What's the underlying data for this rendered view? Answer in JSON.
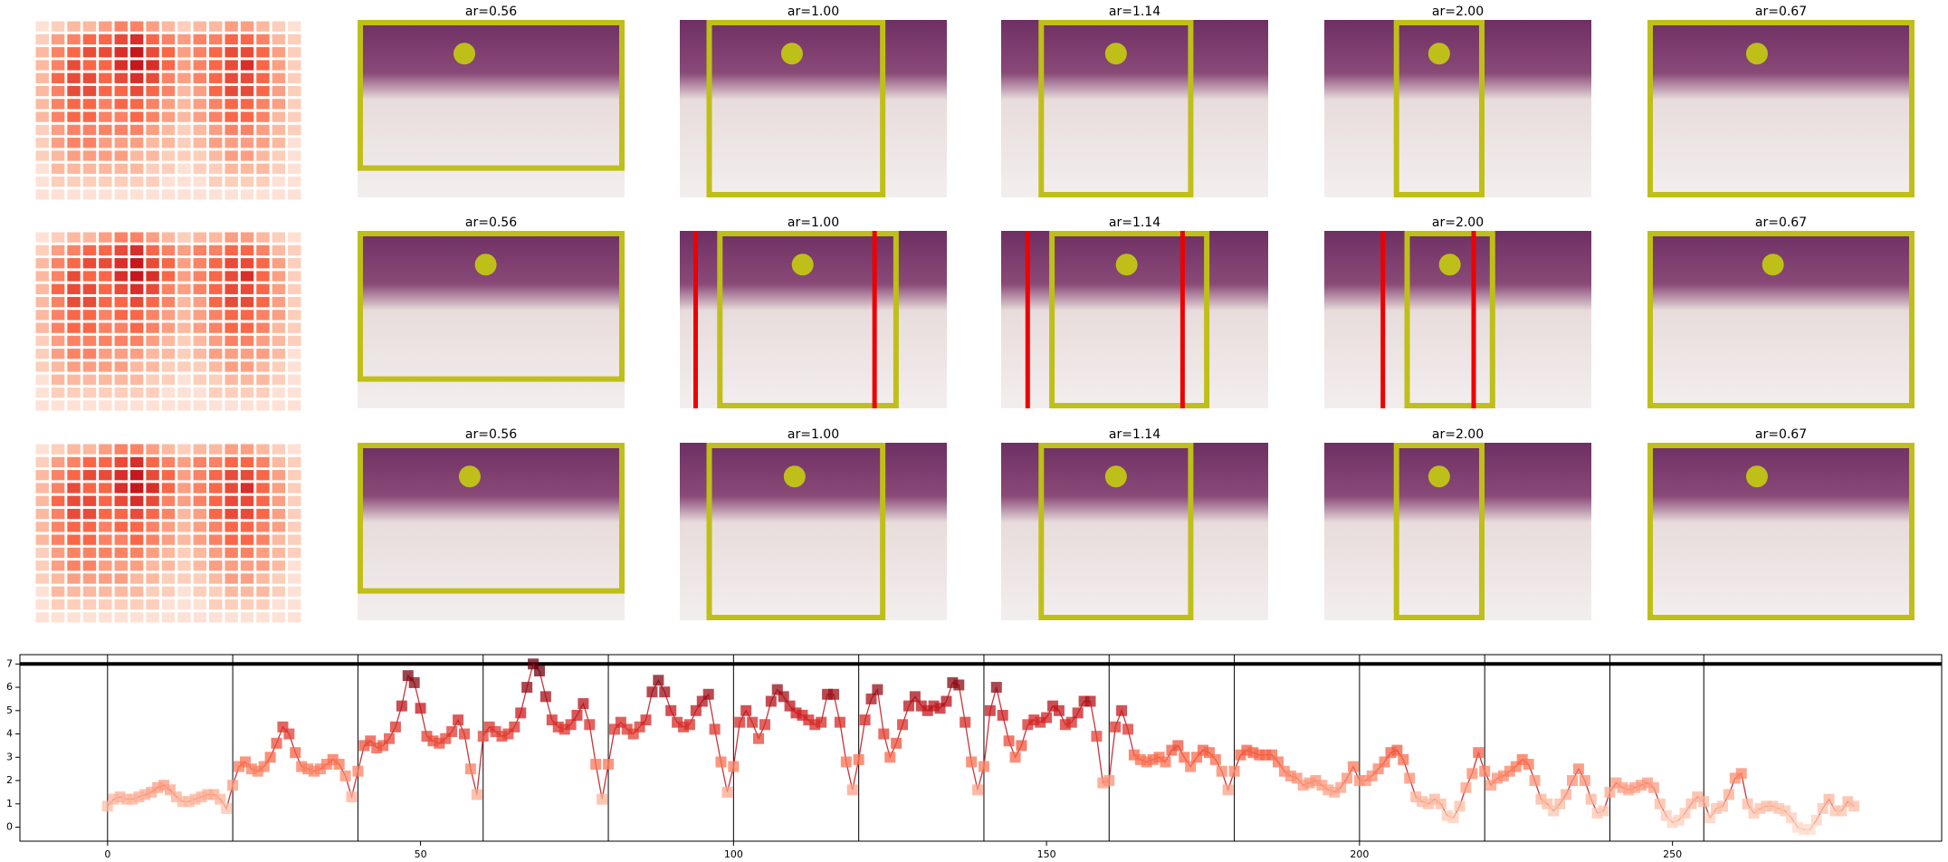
{
  "panel_titles": [
    "ar=0.56",
    "ar=1.00",
    "ar=1.14",
    "ar=2.00",
    "ar=0.67"
  ],
  "heatmap": [
    [
      0.1,
      0.2,
      0.3,
      0.3,
      0.4,
      0.5,
      0.5,
      0.4,
      0.3,
      0.2,
      0.3,
      0.3,
      0.4,
      0.4,
      0.3,
      0.2,
      0.1
    ],
    [
      0.2,
      0.4,
      0.5,
      0.6,
      0.6,
      0.7,
      0.8,
      0.6,
      0.5,
      0.4,
      0.5,
      0.5,
      0.6,
      0.6,
      0.5,
      0.3,
      0.2
    ],
    [
      0.3,
      0.5,
      0.6,
      0.7,
      0.7,
      0.8,
      0.9,
      0.7,
      0.6,
      0.4,
      0.5,
      0.6,
      0.7,
      0.7,
      0.6,
      0.4,
      0.2
    ],
    [
      0.3,
      0.5,
      0.7,
      0.6,
      0.6,
      0.8,
      0.9,
      0.8,
      0.6,
      0.4,
      0.5,
      0.6,
      0.7,
      0.8,
      0.6,
      0.4,
      0.2
    ],
    [
      0.3,
      0.6,
      0.7,
      0.7,
      0.6,
      0.7,
      0.8,
      0.7,
      0.5,
      0.4,
      0.5,
      0.6,
      0.7,
      0.7,
      0.6,
      0.4,
      0.2
    ],
    [
      0.3,
      0.5,
      0.7,
      0.7,
      0.6,
      0.6,
      0.7,
      0.6,
      0.5,
      0.3,
      0.4,
      0.6,
      0.7,
      0.7,
      0.6,
      0.4,
      0.2
    ],
    [
      0.3,
      0.5,
      0.6,
      0.6,
      0.5,
      0.6,
      0.6,
      0.5,
      0.4,
      0.3,
      0.4,
      0.5,
      0.6,
      0.6,
      0.5,
      0.4,
      0.2
    ],
    [
      0.3,
      0.5,
      0.6,
      0.6,
      0.5,
      0.5,
      0.6,
      0.5,
      0.4,
      0.3,
      0.4,
      0.5,
      0.6,
      0.6,
      0.5,
      0.3,
      0.2
    ],
    [
      0.2,
      0.4,
      0.5,
      0.5,
      0.5,
      0.5,
      0.5,
      0.4,
      0.3,
      0.2,
      0.3,
      0.4,
      0.5,
      0.5,
      0.4,
      0.3,
      0.2
    ],
    [
      0.2,
      0.4,
      0.5,
      0.5,
      0.4,
      0.4,
      0.4,
      0.3,
      0.3,
      0.2,
      0.3,
      0.4,
      0.4,
      0.4,
      0.4,
      0.3,
      0.1
    ],
    [
      0.2,
      0.3,
      0.4,
      0.4,
      0.4,
      0.4,
      0.3,
      0.3,
      0.2,
      0.2,
      0.2,
      0.3,
      0.4,
      0.4,
      0.3,
      0.2,
      0.1
    ],
    [
      0.1,
      0.3,
      0.3,
      0.3,
      0.3,
      0.3,
      0.3,
      0.2,
      0.2,
      0.1,
      0.2,
      0.2,
      0.3,
      0.3,
      0.3,
      0.2,
      0.1
    ],
    [
      0.1,
      0.2,
      0.2,
      0.2,
      0.2,
      0.2,
      0.2,
      0.2,
      0.1,
      0.1,
      0.1,
      0.2,
      0.2,
      0.2,
      0.2,
      0.1,
      0.1
    ],
    [
      0.1,
      0.1,
      0.1,
      0.1,
      0.1,
      0.1,
      0.1,
      0.1,
      0.1,
      0.1,
      0.1,
      0.1,
      0.1,
      0.1,
      0.1,
      0.1,
      0.1
    ]
  ],
  "chart_data": {
    "type": "line",
    "xlim": [
      -14,
      293
    ],
    "ylim": [
      -0.6,
      7.4
    ],
    "xticks": [
      0,
      50,
      100,
      150,
      200,
      250
    ],
    "yticks": [
      0,
      1,
      2,
      3,
      4,
      5,
      6,
      7
    ],
    "hline": 7,
    "segment_boundaries": [
      0,
      20,
      40,
      60,
      80,
      100,
      120,
      140,
      160,
      180,
      200,
      220,
      240,
      255
    ],
    "color": "#c8343a",
    "values": [
      0.9,
      1.2,
      1.3,
      1.2,
      1.2,
      1.3,
      1.4,
      1.5,
      1.7,
      1.8,
      1.6,
      1.3,
      1.1,
      1.1,
      1.2,
      1.3,
      1.4,
      1.4,
      1.2,
      0.8,
      1.8,
      2.6,
      2.8,
      2.5,
      2.4,
      2.6,
      3.0,
      3.6,
      4.3,
      4.0,
      3.2,
      2.6,
      2.5,
      2.4,
      2.5,
      2.7,
      2.9,
      2.7,
      2.2,
      1.3,
      2.4,
      3.5,
      3.7,
      3.4,
      3.5,
      3.8,
      4.3,
      5.2,
      6.5,
      6.2,
      5.1,
      3.9,
      3.7,
      3.6,
      3.8,
      4.1,
      4.6,
      4.0,
      2.5,
      1.4,
      3.9,
      4.3,
      4.1,
      3.9,
      4.0,
      4.3,
      4.9,
      6.0,
      7.0,
      6.7,
      5.6,
      4.6,
      4.3,
      4.2,
      4.4,
      4.8,
      5.3,
      4.4,
      2.7,
      1.2,
      2.7,
      4.2,
      4.5,
      4.2,
      4.0,
      4.3,
      4.6,
      5.8,
      6.3,
      5.8,
      5.0,
      4.5,
      4.3,
      4.4,
      5.0,
      5.4,
      5.7,
      4.2,
      2.8,
      1.5,
      2.6,
      4.5,
      5.0,
      4.5,
      3.8,
      4.4,
      5.4,
      5.9,
      5.6,
      5.2,
      4.9,
      4.8,
      4.6,
      4.4,
      4.5,
      5.7,
      5.7,
      4.5,
      2.8,
      1.6,
      2.9,
      4.6,
      5.5,
      5.9,
      4.0,
      3.0,
      3.6,
      4.4,
      5.2,
      5.6,
      5.2,
      5.0,
      5.2,
      5.1,
      5.4,
      6.2,
      6.1,
      4.5,
      2.8,
      1.6,
      2.6,
      5.0,
      6.0,
      4.8,
      3.7,
      3.0,
      3.5,
      4.4,
      4.6,
      4.5,
      4.7,
      5.2,
      5.0,
      4.4,
      4.5,
      4.9,
      5.4,
      5.4,
      3.9,
      1.9,
      2.0,
      4.3,
      5.0,
      4.2,
      3.1,
      2.9,
      2.8,
      2.9,
      3.0,
      2.8,
      3.3,
      3.5,
      3.0,
      2.6,
      3.0,
      3.3,
      3.2,
      2.9,
      2.4,
      1.6,
      2.4,
      3.1,
      3.3,
      3.2,
      3.1,
      3.1,
      3.1,
      2.8,
      2.4,
      2.2,
      2.1,
      1.8,
      1.9,
      2.0,
      1.8,
      1.6,
      1.5,
      1.7,
      2.1,
      2.6,
      2.0,
      2.0,
      2.2,
      2.5,
      2.8,
      3.2,
      3.3,
      2.9,
      2.1,
      1.3,
      1.1,
      1.0,
      1.2,
      1.0,
      0.5,
      0.4,
      0.9,
      1.7,
      2.3,
      3.2,
      2.4,
      1.8,
      2.1,
      2.2,
      2.4,
      2.6,
      2.9,
      2.7,
      2.0,
      1.2,
      1.0,
      0.7,
      1.0,
      1.4,
      2.0,
      2.5,
      2.0,
      1.2,
      0.6,
      0.7,
      1.5,
      1.9,
      1.7,
      1.6,
      1.7,
      1.8,
      1.9,
      1.7,
      1.0,
      0.5,
      0.2,
      0.3,
      0.6,
      1.0,
      1.3,
      1.1,
      0.4,
      0.8,
      0.9,
      1.4,
      2.1,
      2.3,
      1.0,
      0.6,
      0.8,
      0.9,
      0.9,
      0.8,
      0.7,
      0.4,
      0.0,
      -0.1,
      -0.1,
      0.3,
      0.8,
      1.2,
      0.7,
      0.7,
      1.1,
      0.9
    ]
  }
}
